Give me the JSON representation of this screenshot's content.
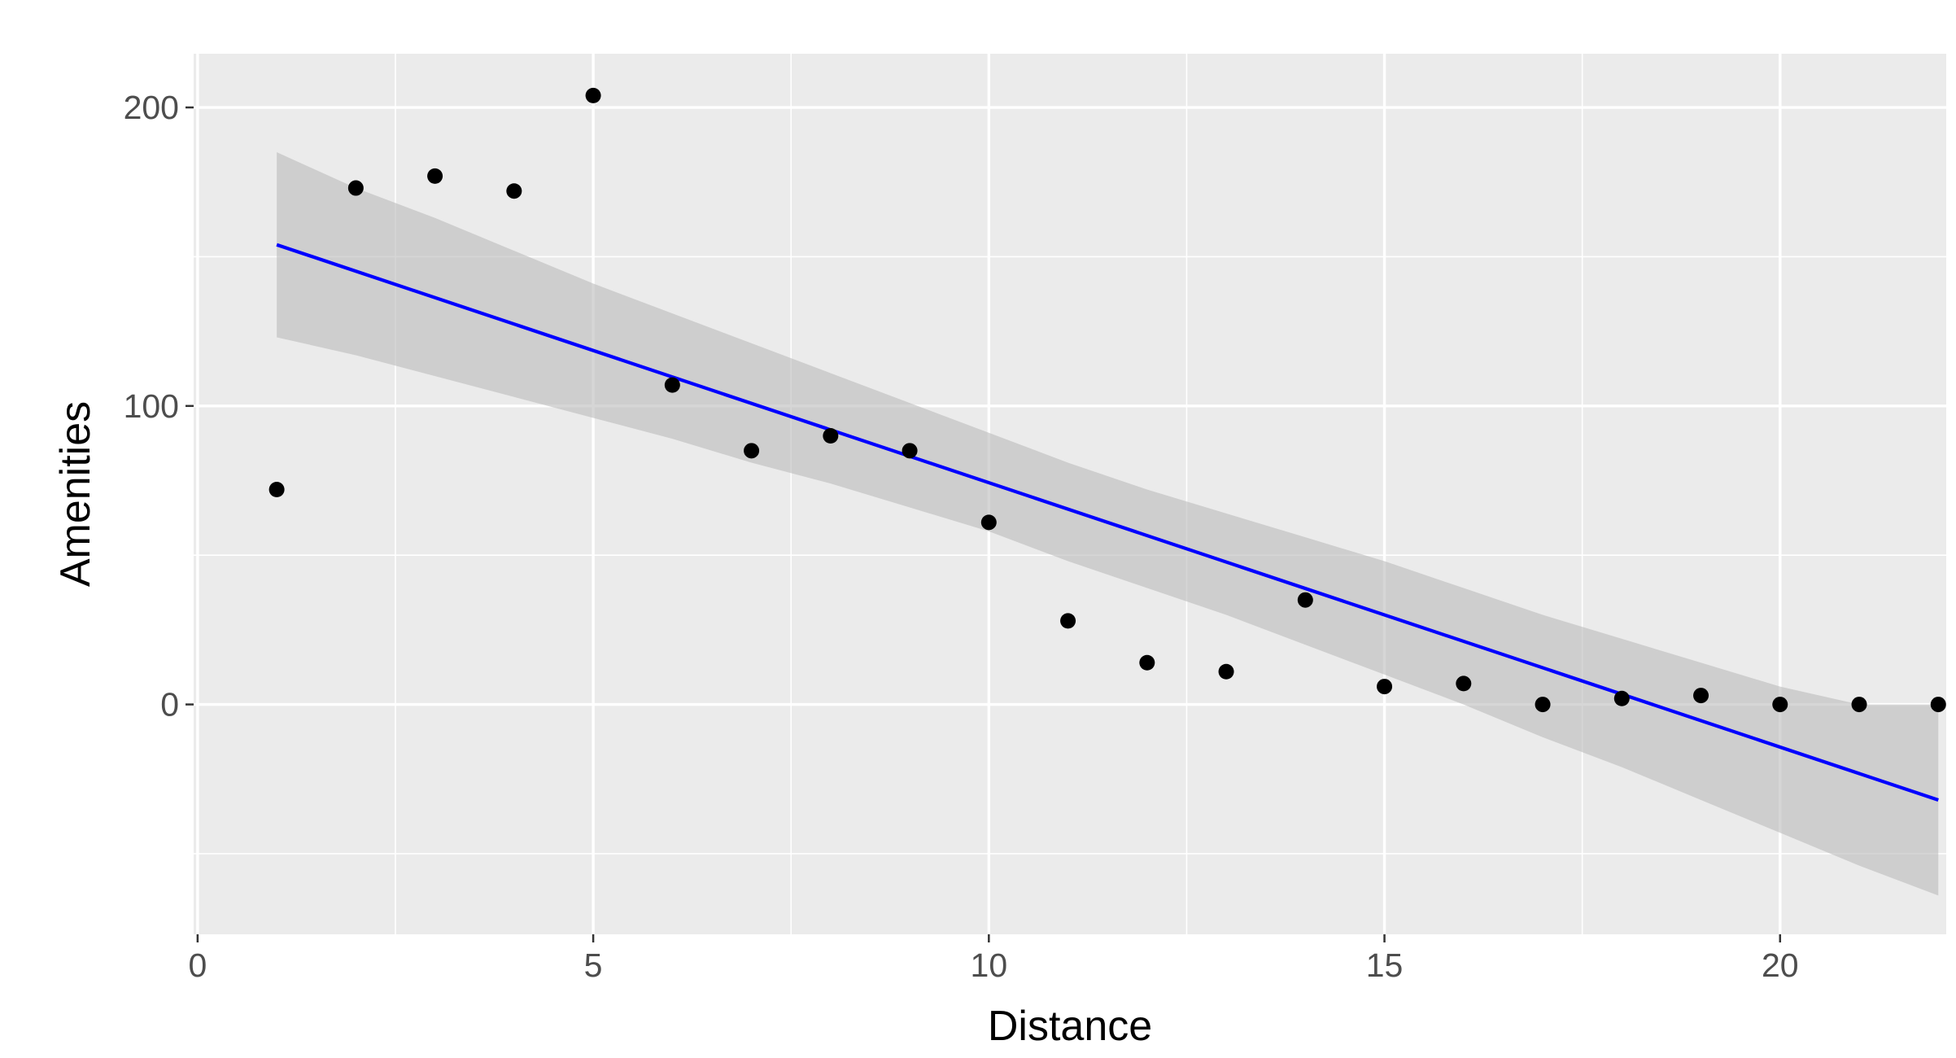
{
  "chart_data": {
    "type": "scatter",
    "title": "",
    "xlabel": "Distance",
    "ylabel": "Amenities",
    "xlim": [
      -0.05,
      22.1
    ],
    "ylim": [
      -77,
      218
    ],
    "x_ticks": [
      0,
      5,
      10,
      15,
      20
    ],
    "x_tick_labels": [
      "0",
      "5",
      "10",
      "15",
      "20"
    ],
    "y_ticks": [
      0,
      100,
      200
    ],
    "y_tick_labels": [
      "0",
      "100",
      "200"
    ],
    "x_minor_gridlines": [
      2.5,
      7.5,
      12.5,
      17.5,
      22.5
    ],
    "y_minor_gridlines": [
      -50,
      50,
      150
    ],
    "grid": true,
    "legend": "none",
    "colors": {
      "panel_background": "#ebebeb",
      "gridline": "#ffffff",
      "point": "#000000",
      "fit_line": "#0000ff",
      "confidence_band": "#bdbdbd",
      "tick_label": "#4d4d4d",
      "tick_mark": "#333333"
    },
    "series": [
      {
        "type": "scatter",
        "x": [
          1,
          2,
          3,
          4,
          5,
          6,
          7,
          8,
          9,
          10,
          11,
          12,
          13,
          14,
          15,
          16,
          17,
          18,
          19,
          20,
          21,
          22
        ],
        "y": [
          72,
          173,
          177,
          172,
          204,
          107,
          85,
          90,
          85,
          61,
          28,
          14,
          11,
          35,
          6,
          7,
          0,
          2,
          3,
          0,
          0,
          0
        ]
      },
      {
        "type": "line",
        "method": "lm",
        "x": [
          1,
          22
        ],
        "y": [
          154,
          -32
        ]
      },
      {
        "type": "area",
        "role": "confidence_band",
        "x": [
          1,
          2,
          3,
          4,
          5,
          6,
          7,
          8,
          9,
          10,
          11,
          12,
          13,
          14,
          15,
          16,
          17,
          18,
          19,
          20,
          21,
          22
        ],
        "lower": [
          123,
          117,
          110,
          103,
          96,
          89,
          81,
          74,
          66,
          58,
          48,
          39,
          30,
          20,
          10,
          0,
          -11,
          -21,
          -32,
          -43,
          -54,
          -64
        ],
        "upper": [
          185,
          173,
          163,
          152,
          141,
          131,
          121,
          111,
          101,
          91,
          81,
          72,
          64,
          56,
          48,
          39,
          30,
          22,
          14,
          6,
          0,
          0
        ]
      }
    ]
  }
}
